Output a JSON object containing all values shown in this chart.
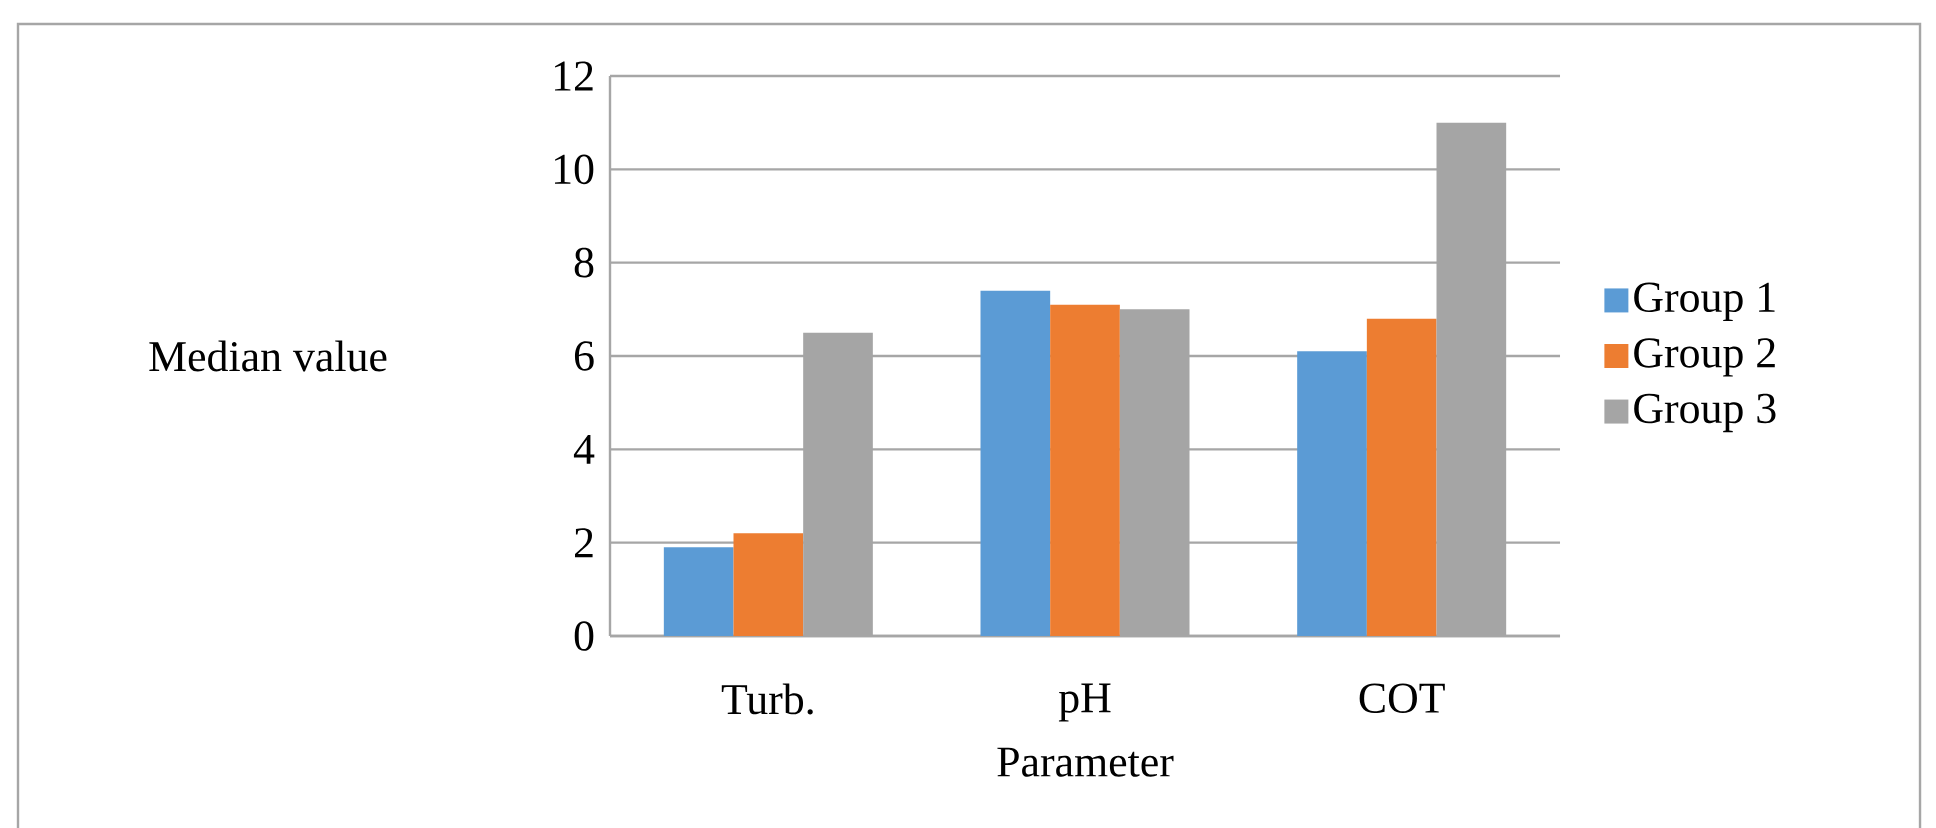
{
  "chart_data": {
    "type": "bar",
    "xlabel": "Parameter",
    "ylabel": "Median value",
    "categories": [
      "Turb.",
      "pH",
      "COT"
    ],
    "series": [
      {
        "name": "Group 1",
        "color": "#5b9bd5",
        "values": [
          1.9,
          7.4,
          6.1
        ]
      },
      {
        "name": "Group 2",
        "color": "#ed7d31",
        "values": [
          2.2,
          7.1,
          6.8
        ]
      },
      {
        "name": "Group 3",
        "color": "#a5a5a5",
        "values": [
          6.5,
          7.0,
          11.0
        ]
      }
    ],
    "ylim": [
      0,
      12
    ],
    "yticks": [
      0,
      2,
      4,
      6,
      8,
      10,
      12
    ],
    "grid": "y",
    "legend": "right"
  }
}
